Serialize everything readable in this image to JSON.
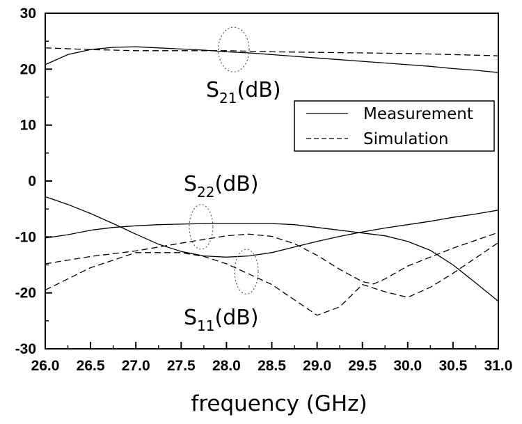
{
  "chart_data": {
    "type": "line",
    "title": "",
    "xlabel": "frequency (GHz)",
    "ylabel": "",
    "xlim": [
      26.0,
      31.0
    ],
    "ylim": [
      -30,
      30
    ],
    "x_ticks": [
      "26.0",
      "26.5",
      "27.0",
      "27.5",
      "28.0",
      "28.5",
      "29.0",
      "29.5",
      "30.0",
      "30.5",
      "31.0"
    ],
    "y_ticks": [
      "30",
      "20",
      "10",
      "0",
      "-10",
      "-20",
      "-30"
    ],
    "grid": false,
    "legend": {
      "placement": "right-middle",
      "entries": [
        {
          "label": "Measurement",
          "style": "solid"
        },
        {
          "label": "Simulation",
          "style": "dashed"
        }
      ]
    },
    "annotations": [
      {
        "main": "S",
        "sub": "21",
        "suffix": "(dB)"
      },
      {
        "main": "S",
        "sub": "22",
        "suffix": "(dB)"
      },
      {
        "main": "S",
        "sub": "11",
        "suffix": "(dB)"
      }
    ],
    "ellipses": [
      {
        "cx": 28.08,
        "cy": 23.5,
        "rx": 0.17,
        "ry": 4.0
      },
      {
        "cx": 27.72,
        "cy": -8.2,
        "rx": 0.13,
        "ry": 4.0
      },
      {
        "cx": 28.22,
        "cy": -16.2,
        "rx": 0.13,
        "ry": 4.0
      }
    ],
    "series": [
      {
        "style": "solid",
        "x": [
          26.0,
          26.25,
          26.5,
          26.75,
          27.0,
          27.25,
          27.5,
          27.75,
          28.0,
          28.25,
          28.5,
          28.75,
          29.0,
          29.25,
          29.5,
          29.75,
          30.0,
          30.25,
          30.5,
          30.75,
          31.0
        ],
        "y": [
          20.8,
          22.6,
          23.5,
          23.9,
          24.0,
          23.8,
          23.6,
          23.4,
          23.1,
          22.9,
          22.6,
          22.3,
          22.0,
          21.7,
          21.4,
          21.1,
          20.8,
          20.5,
          20.1,
          19.8,
          19.4
        ]
      },
      {
        "style": "dashed",
        "x": [
          26.0,
          26.5,
          27.0,
          27.5,
          28.0,
          28.5,
          29.0,
          29.5,
          30.0,
          30.5,
          31.0
        ],
        "y": [
          23.8,
          23.5,
          23.3,
          23.3,
          23.3,
          23.1,
          23.0,
          22.9,
          22.8,
          22.6,
          22.4
        ]
      },
      {
        "style": "solid",
        "x": [
          26.0,
          26.25,
          26.5,
          26.75,
          27.0,
          27.25,
          27.5,
          27.75,
          28.0,
          28.25,
          28.5,
          28.75,
          29.0,
          29.25,
          29.5,
          29.75,
          30.0,
          30.25,
          30.5,
          30.75,
          31.0
        ],
        "y": [
          -10.2,
          -9.6,
          -8.8,
          -8.3,
          -8.0,
          -7.8,
          -7.7,
          -7.6,
          -7.6,
          -7.6,
          -7.6,
          -7.8,
          -8.3,
          -8.8,
          -9.3,
          -9.8,
          -10.8,
          -12.4,
          -15.0,
          -18.2,
          -21.5
        ]
      },
      {
        "style": "solid",
        "x": [
          26.0,
          26.25,
          26.5,
          26.75,
          27.0,
          27.25,
          27.5,
          27.75,
          28.0,
          28.25,
          28.5,
          28.75,
          29.0,
          29.25,
          29.5,
          29.75,
          30.0,
          30.25,
          30.5,
          30.75,
          31.0
        ],
        "y": [
          -2.8,
          -4.2,
          -5.8,
          -7.6,
          -9.5,
          -11.3,
          -12.6,
          -13.4,
          -13.6,
          -13.4,
          -12.8,
          -11.8,
          -10.8,
          -9.9,
          -9.1,
          -8.4,
          -7.8,
          -7.2,
          -6.5,
          -5.9,
          -5.2
        ]
      },
      {
        "style": "dashed",
        "x": [
          26.0,
          26.5,
          27.0,
          27.5,
          28.0,
          28.25,
          28.5,
          28.75,
          29.0,
          29.25,
          29.5,
          29.625,
          29.75,
          30.0,
          30.5,
          31.0
        ],
        "y": [
          -14.8,
          -13.5,
          -12.5,
          -11.1,
          -9.8,
          -9.5,
          -9.9,
          -11.2,
          -13.3,
          -15.8,
          -18.0,
          -18.4,
          -17.5,
          -15.2,
          -12.0,
          -9.2
        ]
      },
      {
        "style": "dashed",
        "x": [
          26.0,
          26.5,
          27.0,
          27.5,
          27.75,
          28.0,
          28.5,
          29.0,
          29.25,
          29.5,
          29.75,
          30.0,
          30.25,
          30.5,
          31.0
        ],
        "y": [
          -19.5,
          -15.5,
          -12.8,
          -12.8,
          -13.5,
          -14.8,
          -18.5,
          -24.0,
          -22.5,
          -18.5,
          -19.8,
          -20.8,
          -19.0,
          -16.5,
          -11.0
        ]
      }
    ]
  }
}
